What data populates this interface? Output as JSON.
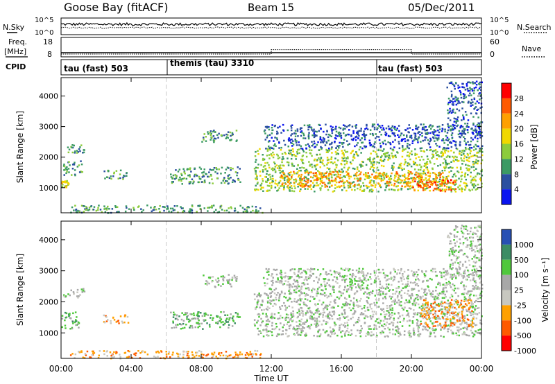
{
  "header": {
    "station": "Goose Bay (fitACF)",
    "beam": "Beam 15",
    "date": "05/Dec/2011"
  },
  "top_panels": {
    "nsky_label": "N.Sky",
    "nsearch_label": "N.Search",
    "noise_ticks": [
      "10^5",
      "10^0"
    ],
    "freq_label_1": "Freq.",
    "freq_label_2": "[MHz]",
    "freq_ticks": [
      "18",
      "8"
    ],
    "nave_label": "Nave",
    "nave_ticks": [
      "60",
      "0"
    ],
    "cpid_label": "CPID",
    "cpid_segments": [
      {
        "label": "tau (fast) 503",
        "start_h": 0,
        "end_h": 6
      },
      {
        "label": "themis (tau) 3310",
        "start_h": 6,
        "end_h": 18
      },
      {
        "label": "tau (fast) 503",
        "start_h": 18,
        "end_h": 24
      }
    ],
    "freq_mhz": 10.5,
    "nave_levels": [
      {
        "start_h": 0,
        "end_h": 12,
        "value": 10
      },
      {
        "start_h": 12,
        "end_h": 20,
        "value": 26
      },
      {
        "start_h": 20,
        "end_h": 24,
        "value": 10
      }
    ]
  },
  "power_panel": {
    "ylabel": "Slant Range [km]",
    "colorbar_label": "Power [dB]",
    "colorbar_ticks": [
      "28",
      "24",
      "20",
      "16",
      "12",
      "8",
      "4"
    ],
    "colors": [
      "#ff0000",
      "#ff5a00",
      "#ffa000",
      "#f0d800",
      "#8ccc3c",
      "#3c9a64",
      "#2c50a0",
      "#0a14f0"
    ]
  },
  "velocity_panel": {
    "ylabel": "Slant Range [km]",
    "colorbar_label": "Velocity [m s⁻¹]",
    "colorbar_ticks": [
      "1000",
      "500",
      "100",
      "25",
      "-25",
      "-100",
      "-500",
      "-1000"
    ],
    "colors": [
      "#2850b4",
      "#3c8c64",
      "#50c83c",
      "#a8a8a8",
      "#c8c8c0",
      "#ffa000",
      "#ff5a00",
      "#ff0000"
    ]
  },
  "chart_data": {
    "type": "heatmap",
    "xlabel": "Time UT",
    "x_ticks": [
      "00:00",
      "04:00",
      "08:00",
      "12:00",
      "16:00",
      "20:00",
      "00:00"
    ],
    "y_ticks": [
      "1000",
      "2000",
      "3000",
      "4000"
    ],
    "xlim_hours": [
      0,
      24
    ],
    "ylim_km": [
      180,
      4600
    ],
    "power_regions": [
      {
        "t0": 0.1,
        "t1": 1.3,
        "r0": 2150,
        "r1": 2450,
        "level": 2
      },
      {
        "t0": 0.1,
        "t1": 1.2,
        "r0": 1400,
        "r1": 1900,
        "level": 2
      },
      {
        "t0": 0.0,
        "t1": 0.4,
        "r0": 1000,
        "r1": 1250,
        "level": 4
      },
      {
        "t0": 2.4,
        "t1": 3.8,
        "r0": 1300,
        "r1": 1600,
        "level": 2
      },
      {
        "t0": 0.5,
        "t1": 11.5,
        "r0": 200,
        "r1": 450,
        "level": 2
      },
      {
        "t0": 8.0,
        "t1": 10.0,
        "r0": 2500,
        "r1": 2900,
        "level": 2
      },
      {
        "t0": 6.2,
        "t1": 10.2,
        "r0": 1150,
        "r1": 1700,
        "level": 2
      },
      {
        "t0": 11.0,
        "t1": 24.0,
        "r0": 900,
        "r1": 2300,
        "level": 3
      },
      {
        "t0": 12.5,
        "t1": 22.0,
        "r0": 1050,
        "r1": 1550,
        "level": 5
      },
      {
        "t0": 20.0,
        "t1": 22.5,
        "r0": 900,
        "r1": 1300,
        "level": 6
      },
      {
        "t0": 11.5,
        "t1": 24.0,
        "r0": 2300,
        "r1": 3100,
        "level": 1
      },
      {
        "t0": 22.0,
        "t1": 24.0,
        "r0": 2800,
        "r1": 4500,
        "level": 1
      }
    ],
    "velocity_regions": [
      {
        "t0": 0.1,
        "t1": 1.3,
        "r0": 2150,
        "r1": 2450,
        "level": 4
      },
      {
        "t0": 0.0,
        "t1": 1.0,
        "r0": 1150,
        "r1": 1700,
        "level": 5
      },
      {
        "t0": 2.4,
        "t1": 3.8,
        "r0": 1300,
        "r1": 1600,
        "level": 2
      },
      {
        "t0": 0.5,
        "t1": 11.5,
        "r0": 200,
        "r1": 450,
        "level": 2
      },
      {
        "t0": 8.0,
        "t1": 10.0,
        "r0": 2500,
        "r1": 2900,
        "level": 4
      },
      {
        "t0": 6.2,
        "t1": 10.2,
        "r0": 1150,
        "r1": 1700,
        "level": 5
      },
      {
        "t0": 11.0,
        "t1": 24.0,
        "r0": 900,
        "r1": 2300,
        "level": 4
      },
      {
        "t0": 11.5,
        "t1": 24.0,
        "r0": 2300,
        "r1": 3100,
        "level": 4
      },
      {
        "t0": 20.5,
        "t1": 23.5,
        "r0": 1200,
        "r1": 2100,
        "level": 2
      },
      {
        "t0": 22.0,
        "t1": 24.0,
        "r0": 2800,
        "r1": 4500,
        "level": 4
      }
    ]
  }
}
